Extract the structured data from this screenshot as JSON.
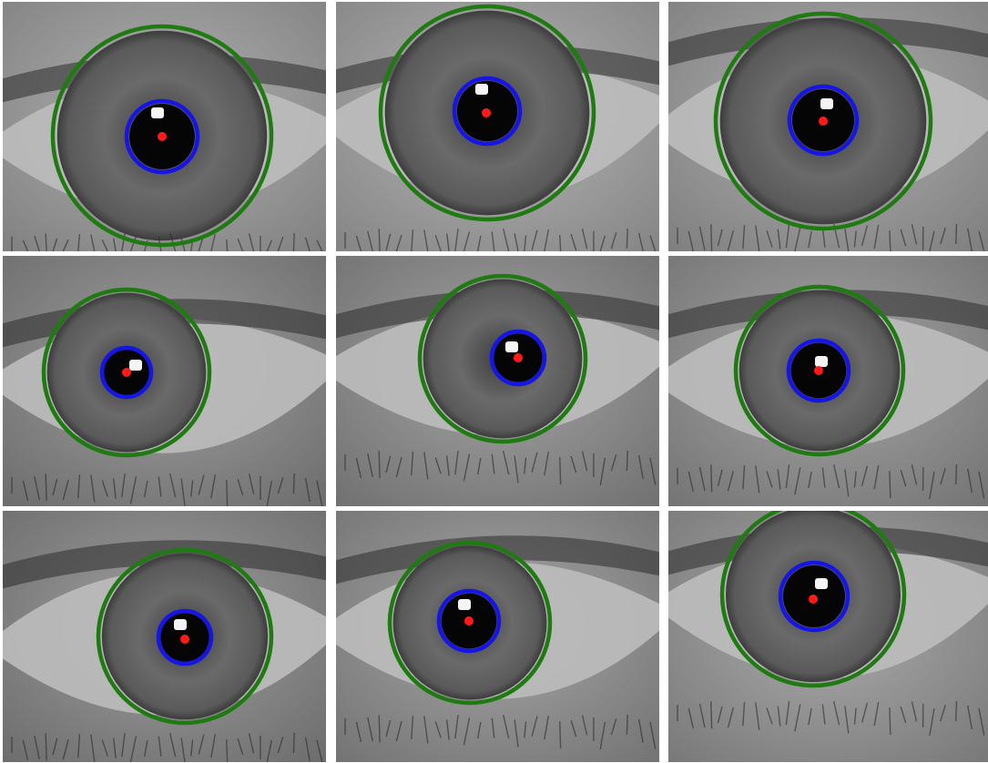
{
  "figure": {
    "description_colors": {
      "iris_boundary": "#1f7a12",
      "pupil_boundary": "#1515e6",
      "pupil_center": "#ff1a1a",
      "background": "#ffffff"
    },
    "panels": [
      {
        "id": "eye-1"
      },
      {
        "id": "eye-2"
      },
      {
        "id": "eye-3"
      },
      {
        "id": "eye-4"
      },
      {
        "id": "eye-5"
      },
      {
        "id": "eye-6"
      },
      {
        "id": "eye-7"
      },
      {
        "id": "eye-8"
      },
      {
        "id": "eye-9"
      }
    ]
  }
}
